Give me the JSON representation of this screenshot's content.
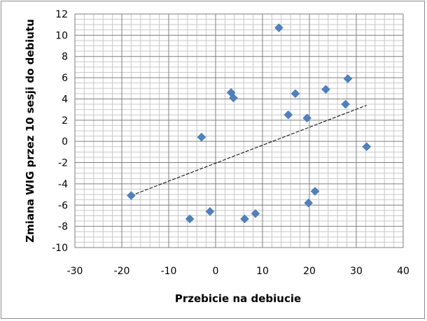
{
  "chart_data": {
    "type": "scatter",
    "title": "",
    "xlabel": "Przebicie na debiucie",
    "ylabel": "Zmiana WIG przez 10 sesji do debiutu",
    "xlim": [
      -30,
      40
    ],
    "ylim": [
      -10,
      12
    ],
    "xticks": [
      -30,
      -20,
      -10,
      0,
      10,
      20,
      30,
      40
    ],
    "yticks": [
      -10,
      -8,
      -6,
      -4,
      -2,
      0,
      2,
      4,
      6,
      8,
      10,
      12
    ],
    "xtick_labels": [
      "-30",
      "-20",
      "-10",
      "0",
      "10",
      "20",
      "30",
      "40"
    ],
    "ytick_labels": [
      "-10",
      "-8",
      "-6",
      "-4",
      "-2",
      "0",
      "2",
      "4",
      "6",
      "8",
      "10",
      "12"
    ],
    "grid": true,
    "legend": "none",
    "marker": "diamond",
    "series": [
      {
        "color": "#4f81bd",
        "points": [
          {
            "x": 13.5,
            "y": 10.7
          },
          {
            "x": 3.3,
            "y": 4.6
          },
          {
            "x": 3.8,
            "y": 4.1
          },
          {
            "x": 17.0,
            "y": 4.5
          },
          {
            "x": 23.5,
            "y": 4.9
          },
          {
            "x": 28.2,
            "y": 5.9
          },
          {
            "x": 15.5,
            "y": 2.5
          },
          {
            "x": 19.5,
            "y": 2.2
          },
          {
            "x": 27.7,
            "y": 3.5
          },
          {
            "x": -3.0,
            "y": 0.4
          },
          {
            "x": 32.2,
            "y": -0.5
          },
          {
            "x": -18.0,
            "y": -5.1
          },
          {
            "x": 21.2,
            "y": -4.7
          },
          {
            "x": 19.8,
            "y": -5.8
          },
          {
            "x": -5.5,
            "y": -7.3
          },
          {
            "x": -1.2,
            "y": -6.6
          },
          {
            "x": 8.5,
            "y": -6.8
          },
          {
            "x": 6.2,
            "y": -7.3
          }
        ]
      }
    ],
    "trendline": {
      "type": "linear",
      "style": "dashed",
      "color": "#000000",
      "x": [
        -18,
        32.2
      ],
      "y": [
        -5.1,
        3.4
      ]
    }
  }
}
